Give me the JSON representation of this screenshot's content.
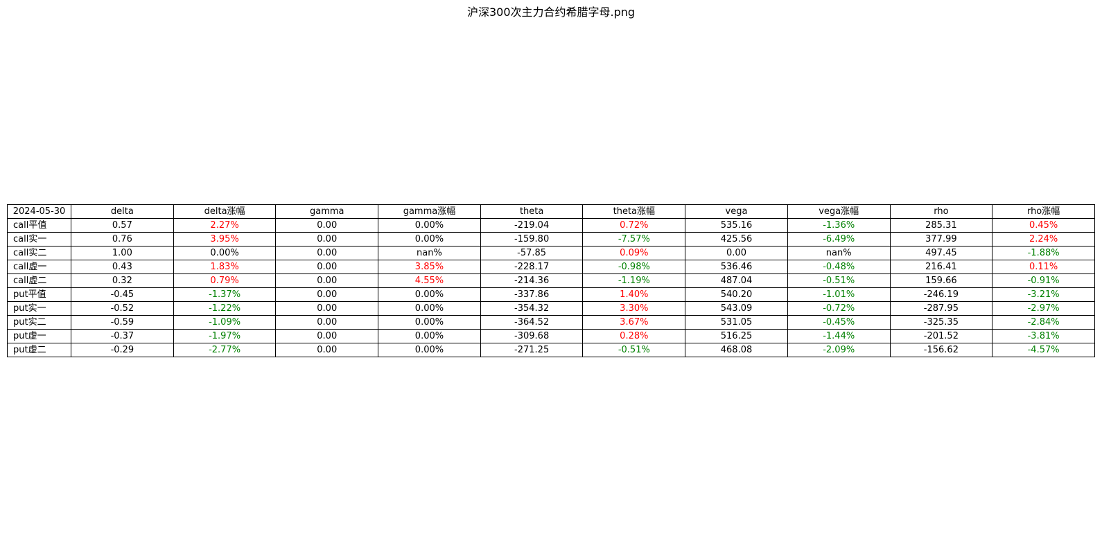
{
  "title": "沪深300次主力合约希腊字母.png",
  "colors": {
    "up": "#ff0000",
    "down": "#008000",
    "neutral": "#000000"
  },
  "chart_data": {
    "type": "table",
    "title": "沪深300次主力合约希腊字母.png",
    "columns": [
      "2024-05-30",
      "delta",
      "delta涨幅",
      "gamma",
      "gamma涨幅",
      "theta",
      "theta涨幅",
      "vega",
      "vega涨幅",
      "rho",
      "rho涨幅"
    ],
    "rows": [
      [
        "call平值",
        "0.57",
        "2.27%",
        "0.00",
        "0.00%",
        "-219.04",
        "0.72%",
        "535.16",
        "-1.36%",
        "285.31",
        "0.45%"
      ],
      [
        "call实一",
        "0.76",
        "3.95%",
        "0.00",
        "0.00%",
        "-159.80",
        "-7.57%",
        "425.56",
        "-6.49%",
        "377.99",
        "2.24%"
      ],
      [
        "call实二",
        "1.00",
        "0.00%",
        "0.00",
        "nan%",
        "-57.85",
        "0.09%",
        "0.00",
        "nan%",
        "497.45",
        "-1.88%"
      ],
      [
        "call虚一",
        "0.43",
        "1.83%",
        "0.00",
        "3.85%",
        "-228.17",
        "-0.98%",
        "536.46",
        "-0.48%",
        "216.41",
        "0.11%"
      ],
      [
        "call虚二",
        "0.32",
        "0.79%",
        "0.00",
        "4.55%",
        "-214.36",
        "-1.19%",
        "487.04",
        "-0.51%",
        "159.66",
        "-0.91%"
      ],
      [
        "put平值",
        "-0.45",
        "-1.37%",
        "0.00",
        "0.00%",
        "-337.86",
        "1.40%",
        "540.20",
        "-1.01%",
        "-246.19",
        "-3.21%"
      ],
      [
        "put实一",
        "-0.52",
        "-1.22%",
        "0.00",
        "0.00%",
        "-354.32",
        "3.30%",
        "543.09",
        "-0.72%",
        "-287.95",
        "-2.97%"
      ],
      [
        "put实二",
        "-0.59",
        "-1.09%",
        "0.00",
        "0.00%",
        "-364.52",
        "3.67%",
        "531.05",
        "-0.45%",
        "-325.35",
        "-2.84%"
      ],
      [
        "put虚一",
        "-0.37",
        "-1.97%",
        "0.00",
        "0.00%",
        "-309.68",
        "0.28%",
        "516.25",
        "-1.44%",
        "-201.52",
        "-3.81%"
      ],
      [
        "put虚二",
        "-0.29",
        "-2.77%",
        "0.00",
        "0.00%",
        "-271.25",
        "-0.51%",
        "468.08",
        "-2.09%",
        "-156.62",
        "-4.57%"
      ]
    ]
  }
}
